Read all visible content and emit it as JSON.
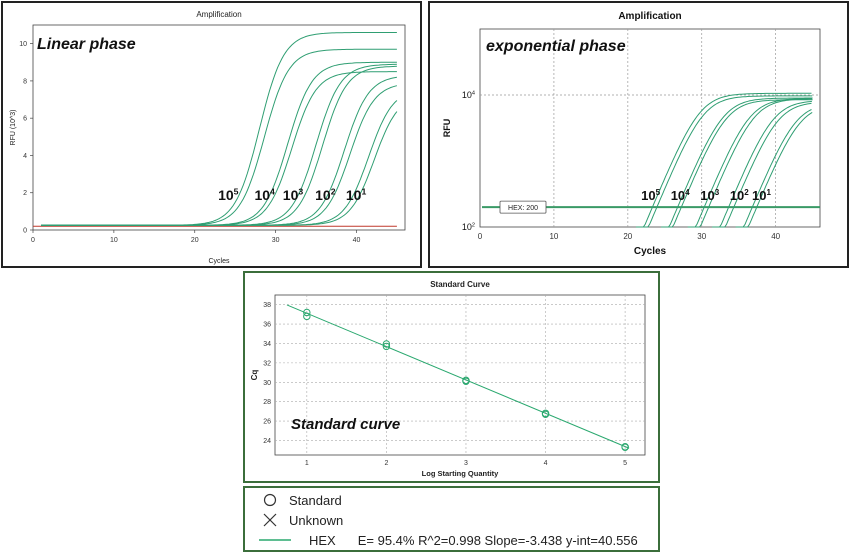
{
  "colors": {
    "curve": "#2f9e72",
    "std_line": "#2aa86f",
    "threshold_lin": "#c0392b",
    "threshold_exp": "#3a9a66",
    "panel_border": "#222222",
    "std_border": "#3b6e3b"
  },
  "chart_data": [
    {
      "type": "line",
      "title": "Amplification",
      "annotation": "Linear phase",
      "xlabel": "Cycles",
      "ylabel": "RFU (10^3)",
      "xlim": [
        0,
        46
      ],
      "ylim": [
        0,
        11
      ],
      "xticks": [
        0,
        10,
        20,
        30,
        40
      ],
      "yticks": [
        0,
        2,
        4,
        6,
        8,
        10
      ],
      "grid": false,
      "concentration_labels": [
        "10^5",
        "10^4",
        "10^3",
        "10^2",
        "10^1"
      ],
      "label_parts": [
        {
          "base": "10",
          "exp": "5"
        },
        {
          "base": "10",
          "exp": "4"
        },
        {
          "base": "10",
          "exp": "3"
        },
        {
          "base": "10",
          "exp": "2"
        },
        {
          "base": "10",
          "exp": "1"
        }
      ],
      "series": [
        {
          "midpoint": 28.0,
          "plateau": 10.6
        },
        {
          "midpoint": 28.6,
          "plateau": 9.7
        },
        {
          "midpoint": 31.5,
          "plateau": 9.0
        },
        {
          "midpoint": 32.0,
          "plateau": 8.5
        },
        {
          "midpoint": 35.0,
          "plateau": 8.9
        },
        {
          "midpoint": 35.8,
          "plateau": 8.8
        },
        {
          "midpoint": 38.5,
          "plateau": 8.3
        },
        {
          "midpoint": 39.2,
          "plateau": 7.9
        },
        {
          "midpoint": 41.5,
          "plateau": 7.6
        },
        {
          "midpoint": 42.2,
          "plateau": 7.3
        }
      ],
      "baseline": 0.25,
      "threshold": 0.2
    },
    {
      "type": "line",
      "title": "Amplification",
      "annotation": "exponential phase",
      "xlabel": "Cycles",
      "ylabel": "RFU",
      "y_scale": "log",
      "xlim": [
        0,
        46
      ],
      "ylim": [
        100,
        100000
      ],
      "xticks": [
        0,
        10,
        20,
        30,
        40
      ],
      "yticks": [
        100,
        10000
      ],
      "ytick_labels": [
        {
          "base": "10",
          "exp": "2"
        },
        {
          "base": "10",
          "exp": "4"
        }
      ],
      "grid": "dotted",
      "threshold_label": "HEX: 200",
      "threshold": 200,
      "label_parts": [
        {
          "base": "10",
          "exp": "5"
        },
        {
          "base": "10",
          "exp": "4"
        },
        {
          "base": "10",
          "exp": "3"
        },
        {
          "base": "10",
          "exp": "2"
        },
        {
          "base": "10",
          "exp": "1"
        }
      ],
      "series": [
        {
          "cross": 23.3,
          "plateau": 10600
        },
        {
          "cross": 23.9,
          "plateau": 9700
        },
        {
          "cross": 26.7,
          "plateau": 9000
        },
        {
          "cross": 27.2,
          "plateau": 8500
        },
        {
          "cross": 30.3,
          "plateau": 8900
        },
        {
          "cross": 30.9,
          "plateau": 8800
        },
        {
          "cross": 33.6,
          "plateau": 8300
        },
        {
          "cross": 34.3,
          "plateau": 7900
        },
        {
          "cross": 36.8,
          "plateau": 7600
        },
        {
          "cross": 37.4,
          "plateau": 7300
        }
      ]
    },
    {
      "type": "scatter",
      "title": "Standard Curve",
      "annotation": "Standard curve",
      "xlabel": "Log Starting Quantity",
      "ylabel": "Cq",
      "xlim": [
        0.6,
        5.25
      ],
      "ylim": [
        22.5,
        39
      ],
      "xticks": [
        1,
        2,
        3,
        4,
        5
      ],
      "yticks": [
        24,
        26,
        28,
        30,
        32,
        34,
        36,
        38
      ],
      "grid": "dotted",
      "points": [
        {
          "x": 1,
          "y": 36.8
        },
        {
          "x": 1,
          "y": 37.2
        },
        {
          "x": 2,
          "y": 33.7
        },
        {
          "x": 2,
          "y": 33.95
        },
        {
          "x": 3,
          "y": 30.1
        },
        {
          "x": 3,
          "y": 30.2
        },
        {
          "x": 4,
          "y": 26.7
        },
        {
          "x": 4,
          "y": 26.8
        },
        {
          "x": 5,
          "y": 23.3
        },
        {
          "x": 5,
          "y": 23.35
        }
      ],
      "fit": {
        "slope": -3.438,
        "intercept": 40.556,
        "x_range": [
          0.75,
          5.05
        ]
      }
    }
  ],
  "legend": {
    "standard_label": "Standard",
    "unknown_label": "Unknown",
    "hex_label": "HEX",
    "stats_text": "E= 95.4% R^2=0.998 Slope=-3.438 y-int=40.556"
  }
}
